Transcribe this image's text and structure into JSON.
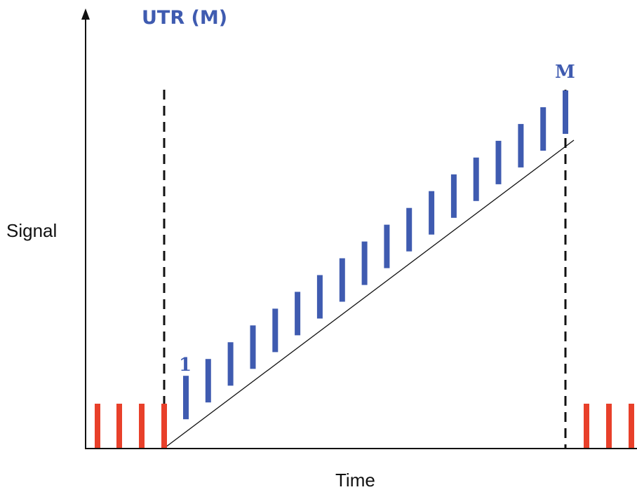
{
  "title": "UTR (M)",
  "labels": {
    "first_read": "1",
    "last_read": "M",
    "x_axis": "Time",
    "y_axis": "Signal"
  },
  "reads": {
    "count": 18,
    "color": "#3f5bb0"
  },
  "reset_pulses": {
    "before_count": 4,
    "after_count": 3,
    "color": "#e8402a"
  },
  "colors": {
    "axis": "#111111",
    "ramp": "#111111",
    "markers": "#111111"
  }
}
